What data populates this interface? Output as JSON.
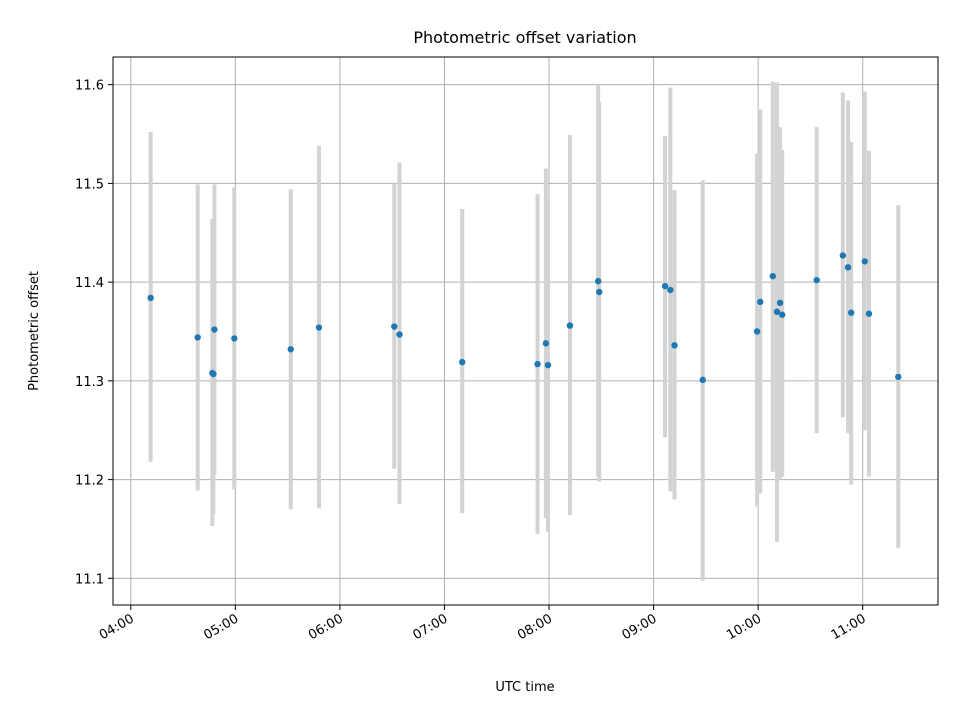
{
  "chart_data": {
    "type": "scatter",
    "title": "Photometric offset variation",
    "xlabel": "UTC time",
    "ylabel": "Photometric offset",
    "x_unit": "hours",
    "xlim": [
      3.83,
      11.72
    ],
    "ylim": [
      11.073,
      11.628
    ],
    "xticks": [
      {
        "value": 4,
        "label": "04:00"
      },
      {
        "value": 5,
        "label": "05:00"
      },
      {
        "value": 6,
        "label": "06:00"
      },
      {
        "value": 7,
        "label": "07:00"
      },
      {
        "value": 8,
        "label": "08:00"
      },
      {
        "value": 9,
        "label": "09:00"
      },
      {
        "value": 10,
        "label": "10:00"
      },
      {
        "value": 11,
        "label": "11:00"
      }
    ],
    "yticks": [
      {
        "value": 11.1,
        "label": "11.1"
      },
      {
        "value": 11.2,
        "label": "11.2"
      },
      {
        "value": 11.3,
        "label": "11.3"
      },
      {
        "value": 11.4,
        "label": "11.4"
      },
      {
        "value": 11.5,
        "label": "11.5"
      },
      {
        "value": 11.6,
        "label": "11.6"
      }
    ],
    "grid": true,
    "point_color": "#1f77b4",
    "errorbar_color": "#d3d3d3",
    "points": [
      {
        "x": 4.19,
        "y": 11.384,
        "lo": 11.218,
        "hi": 11.552
      },
      {
        "x": 4.64,
        "y": 11.344,
        "lo": 11.189,
        "hi": 11.499
      },
      {
        "x": 4.78,
        "y": 11.308,
        "lo": 11.153,
        "hi": 11.464
      },
      {
        "x": 4.79,
        "y": 11.307,
        "lo": 11.165,
        "hi": 11.45
      },
      {
        "x": 4.8,
        "y": 11.352,
        "lo": 11.205,
        "hi": 11.499
      },
      {
        "x": 4.99,
        "y": 11.343,
        "lo": 11.19,
        "hi": 11.496
      },
      {
        "x": 5.53,
        "y": 11.332,
        "lo": 11.17,
        "hi": 11.494
      },
      {
        "x": 5.8,
        "y": 11.354,
        "lo": 11.171,
        "hi": 11.538
      },
      {
        "x": 6.52,
        "y": 11.355,
        "lo": 11.211,
        "hi": 11.5
      },
      {
        "x": 6.57,
        "y": 11.347,
        "lo": 11.175,
        "hi": 11.521
      },
      {
        "x": 7.17,
        "y": 11.319,
        "lo": 11.166,
        "hi": 11.474
      },
      {
        "x": 7.89,
        "y": 11.317,
        "lo": 11.145,
        "hi": 11.489
      },
      {
        "x": 7.97,
        "y": 11.338,
        "lo": 11.161,
        "hi": 11.515
      },
      {
        "x": 7.99,
        "y": 11.316,
        "lo": 11.147,
        "hi": 11.485
      },
      {
        "x": 8.2,
        "y": 11.356,
        "lo": 11.164,
        "hi": 11.549
      },
      {
        "x": 8.47,
        "y": 11.401,
        "lo": 11.203,
        "hi": 11.6
      },
      {
        "x": 8.48,
        "y": 11.39,
        "lo": 11.198,
        "hi": 11.582
      },
      {
        "x": 9.11,
        "y": 11.396,
        "lo": 11.243,
        "hi": 11.548
      },
      {
        "x": 9.16,
        "y": 11.392,
        "lo": 11.188,
        "hi": 11.597
      },
      {
        "x": 9.2,
        "y": 11.336,
        "lo": 11.18,
        "hi": 11.493
      },
      {
        "x": 9.47,
        "y": 11.301,
        "lo": 11.098,
        "hi": 11.503
      },
      {
        "x": 9.99,
        "y": 11.35,
        "lo": 11.173,
        "hi": 11.53
      },
      {
        "x": 10.02,
        "y": 11.38,
        "lo": 11.186,
        "hi": 11.575
      },
      {
        "x": 10.14,
        "y": 11.406,
        "lo": 11.208,
        "hi": 11.603
      },
      {
        "x": 10.18,
        "y": 11.37,
        "lo": 11.137,
        "hi": 11.602
      },
      {
        "x": 10.21,
        "y": 11.379,
        "lo": 11.201,
        "hi": 11.557
      },
      {
        "x": 10.23,
        "y": 11.367,
        "lo": 11.203,
        "hi": 11.534
      },
      {
        "x": 10.56,
        "y": 11.402,
        "lo": 11.247,
        "hi": 11.557
      },
      {
        "x": 10.81,
        "y": 11.427,
        "lo": 11.263,
        "hi": 11.592
      },
      {
        "x": 10.86,
        "y": 11.415,
        "lo": 11.247,
        "hi": 11.584
      },
      {
        "x": 10.89,
        "y": 11.369,
        "lo": 11.195,
        "hi": 11.542
      },
      {
        "x": 11.02,
        "y": 11.421,
        "lo": 11.25,
        "hi": 11.593
      },
      {
        "x": 11.06,
        "y": 11.368,
        "lo": 11.203,
        "hi": 11.533
      },
      {
        "x": 11.34,
        "y": 11.304,
        "lo": 11.131,
        "hi": 11.478
      }
    ]
  }
}
